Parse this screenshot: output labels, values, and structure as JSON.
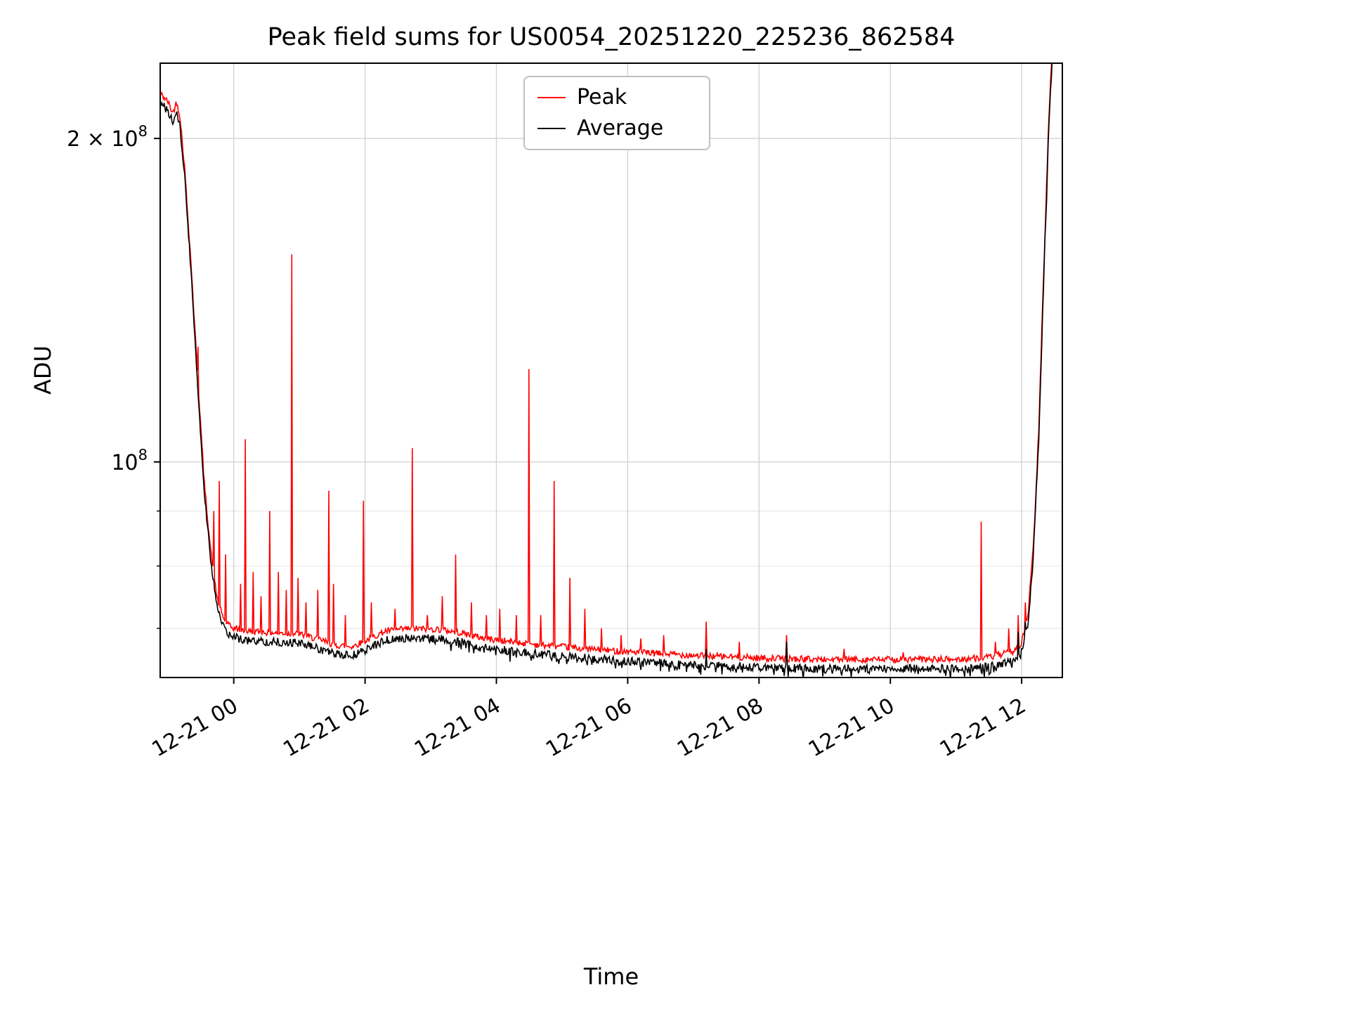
{
  "page": {
    "background": "#ffffff"
  },
  "grid": {
    "major_color": "#d3d3d3",
    "minor_color": "#e8e8e8"
  },
  "chart_data": {
    "type": "line",
    "title": "Peak field sums for US0054_20251220_225236_862584",
    "xlabel": "Time",
    "ylabel": "ADU",
    "legend": {
      "position": "upper center",
      "entries": [
        "Peak",
        "Average"
      ]
    },
    "x_axis": {
      "range": [
        -1.12,
        12.62
      ],
      "ticks": [
        {
          "t": 0,
          "label": "12-21 00"
        },
        {
          "t": 2,
          "label": "12-21 02"
        },
        {
          "t": 4,
          "label": "12-21 04"
        },
        {
          "t": 6,
          "label": "12-21 06"
        },
        {
          "t": 8,
          "label": "12-21 08"
        },
        {
          "t": 10,
          "label": "12-21 10"
        },
        {
          "t": 12,
          "label": "12-21 12"
        }
      ]
    },
    "y_axis": {
      "scale": "log",
      "range": [
        63000000.0,
        235000000.0
      ],
      "ticks": [
        {
          "v": 100000000.0,
          "label": "10^8"
        },
        {
          "v": 200000000.0,
          "label": "2 × 10^8"
        }
      ],
      "minor_gridlines": [
        70000000.0,
        80000000.0,
        90000000.0
      ]
    },
    "sample_step": 0.012,
    "seed": 42,
    "baseline_points": [
      [
        -1.12,
        216000000.0
      ],
      [
        -1.0,
        212000000.0
      ],
      [
        -0.93,
        207000000.0
      ],
      [
        -0.87,
        212000000.0
      ],
      [
        -0.82,
        206000000.0
      ],
      [
        -0.75,
        185000000.0
      ],
      [
        -0.65,
        150000000.0
      ],
      [
        -0.55,
        118000000.0
      ],
      [
        -0.45,
        94000000.0
      ],
      [
        -0.35,
        81000000.0
      ],
      [
        -0.25,
        73000000.0
      ],
      [
        -0.15,
        70000000.0
      ],
      [
        -0.05,
        68800000.0
      ],
      [
        0.2,
        68200000.0
      ],
      [
        0.6,
        68000000.0
      ],
      [
        1.0,
        67800000.0
      ],
      [
        1.3,
        67000000.0
      ],
      [
        1.55,
        66200000.0
      ],
      [
        1.8,
        66000000.0
      ],
      [
        2.0,
        66800000.0
      ],
      [
        2.3,
        68200000.0
      ],
      [
        2.7,
        68600000.0
      ],
      [
        3.1,
        68500000.0
      ],
      [
        3.45,
        68000000.0
      ],
      [
        3.8,
        67200000.0
      ],
      [
        4.2,
        66700000.0
      ],
      [
        4.7,
        66200000.0
      ],
      [
        5.2,
        65800000.0
      ],
      [
        5.8,
        65400000.0
      ],
      [
        6.5,
        65000000.0
      ],
      [
        7.2,
        64700000.0
      ],
      [
        8.0,
        64400000.0
      ],
      [
        9.0,
        64200000.0
      ],
      [
        10.0,
        64200000.0
      ],
      [
        11.0,
        64200000.0
      ],
      [
        11.5,
        64500000.0
      ],
      [
        11.85,
        65200000.0
      ],
      [
        12.0,
        66500000.0
      ],
      [
        12.1,
        71000000.0
      ],
      [
        12.18,
        82000000.0
      ],
      [
        12.26,
        105000000.0
      ],
      [
        12.34,
        150000000.0
      ],
      [
        12.42,
        210000000.0
      ],
      [
        12.5,
        260000000.0
      ],
      [
        12.62,
        330000000.0
      ]
    ],
    "series": [
      {
        "name": "Peak",
        "color": "#ff0000",
        "baseline_ratio": 1.02,
        "noise": 0.007,
        "spikes": [
          [
            -0.55,
            128000000.0
          ],
          [
            -0.3,
            90000000.0
          ],
          [
            -0.22,
            96000000.0
          ],
          [
            -0.12,
            82000000.0
          ],
          [
            0.1,
            77000000.0
          ],
          [
            0.18,
            105000000.0
          ],
          [
            0.3,
            79000000.0
          ],
          [
            0.42,
            75000000.0
          ],
          [
            0.55,
            90000000.0
          ],
          [
            0.68,
            79000000.0
          ],
          [
            0.8,
            76000000.0
          ],
          [
            0.88,
            156000000.0
          ],
          [
            0.98,
            78000000.0
          ],
          [
            1.1,
            74000000.0
          ],
          [
            1.28,
            76000000.0
          ],
          [
            1.45,
            94000000.0
          ],
          [
            1.52,
            77000000.0
          ],
          [
            1.7,
            72000000.0
          ],
          [
            1.98,
            92000000.0
          ],
          [
            2.1,
            74000000.0
          ],
          [
            2.45,
            73000000.0
          ],
          [
            2.72,
            103000000.0
          ],
          [
            2.95,
            72000000.0
          ],
          [
            3.18,
            75000000.0
          ],
          [
            3.38,
            82000000.0
          ],
          [
            3.62,
            74000000.0
          ],
          [
            3.85,
            72000000.0
          ],
          [
            4.05,
            73000000.0
          ],
          [
            4.3,
            72000000.0
          ],
          [
            4.5,
            122000000.0
          ],
          [
            4.68,
            72000000.0
          ],
          [
            4.88,
            96000000.0
          ],
          [
            5.12,
            78000000.0
          ],
          [
            5.35,
            73000000.0
          ],
          [
            5.6,
            70000000.0
          ],
          [
            5.9,
            69000000.0
          ],
          [
            6.2,
            68500000.0
          ],
          [
            6.55,
            69000000.0
          ],
          [
            7.2,
            71000000.0
          ],
          [
            7.7,
            68000000.0
          ],
          [
            8.42,
            69000000.0
          ],
          [
            9.3,
            67000000.0
          ],
          [
            10.2,
            66500000.0
          ],
          [
            11.38,
            88000000.0
          ],
          [
            11.6,
            68000000.0
          ],
          [
            11.8,
            70000000.0
          ],
          [
            11.95,
            72000000.0
          ],
          [
            12.05,
            74000000.0
          ]
        ],
        "dips": null
      },
      {
        "name": "Average",
        "color": "#000000",
        "baseline_ratio": 1.0,
        "noise": 0.009,
        "spikes": [
          [
            7.2,
            67000000.0
          ],
          [
            8.42,
            68000000.0
          ],
          [
            11.95,
            69500000.0
          ],
          [
            12.05,
            71000000.0
          ]
        ],
        "dips": {
          "prob": 0.2,
          "amp": 0.015,
          "after_t": 3.0
        }
      }
    ]
  }
}
